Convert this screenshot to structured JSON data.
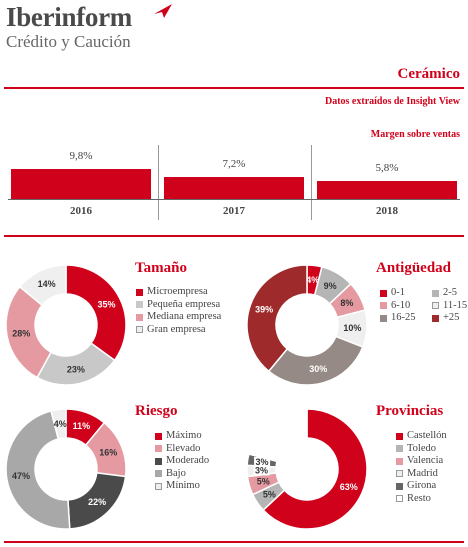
{
  "brand": {
    "name": "Iberinform",
    "tagline": "Crédito y Caución",
    "logo_icon": "red-plane-icon"
  },
  "header": {
    "sector": "Cerámico",
    "source": "Datos extraídos de Insight View"
  },
  "colors": {
    "accent": "#d0021b"
  },
  "chart_data": [
    {
      "type": "bar",
      "title": "Margen sobre ventas",
      "categories": [
        "2016",
        "2017",
        "2018"
      ],
      "values": [
        9.8,
        7.2,
        5.8
      ],
      "value_labels": [
        "9,8%",
        "7,2%",
        "5,8%"
      ],
      "ylim": [
        0,
        12
      ]
    },
    {
      "type": "pie",
      "title": "Tamaño",
      "categories": [
        "Microempresa",
        "Pequeña empresa",
        "Mediana empresa",
        "Gran empresa"
      ],
      "values": [
        35,
        23,
        28,
        14
      ],
      "value_labels": [
        "35%",
        "23%",
        "28%",
        "14%"
      ],
      "colors": [
        "#d0021b",
        "#c8c8c8",
        "#e49aa0",
        "#efefef"
      ]
    },
    {
      "type": "pie",
      "title": "Antigüedad",
      "categories": [
        "0-1",
        "2-5",
        "6-10",
        "11-15",
        "16-25",
        "+25"
      ],
      "values": [
        4,
        9,
        8,
        10,
        30,
        39
      ],
      "value_labels": [
        "4%",
        "9%",
        "8%",
        "10%",
        "30%",
        "39%"
      ],
      "colors": [
        "#d0021b",
        "#b5b5b5",
        "#e49aa0",
        "#efefef",
        "#968a86",
        "#9e2a2b"
      ]
    },
    {
      "type": "pie",
      "title": "Riesgo",
      "categories": [
        "Máximo",
        "Elevado",
        "Moderado",
        "Bajo",
        "Mínimo"
      ],
      "values": [
        11,
        16,
        22,
        47,
        4
      ],
      "value_labels": [
        "11%",
        "16%",
        "22%",
        "47%",
        "4%"
      ],
      "colors": [
        "#d0021b",
        "#e49aa0",
        "#4a4a4a",
        "#a8a8a8",
        "#efefef"
      ]
    },
    {
      "type": "pie",
      "title": "Provincias",
      "categories": [
        "Castellón",
        "Toledo",
        "Valencia",
        "Madrid",
        "Girona",
        "Resto"
      ],
      "values": [
        63,
        5,
        5,
        3,
        3,
        21
      ],
      "value_labels": [
        "63%",
        "5%",
        "5%",
        "3%",
        "3%",
        ""
      ],
      "colors": [
        "#d0021b",
        "#b5b5b5",
        "#e49aa0",
        "#efefef",
        "#666666",
        "#ffffff"
      ]
    }
  ]
}
